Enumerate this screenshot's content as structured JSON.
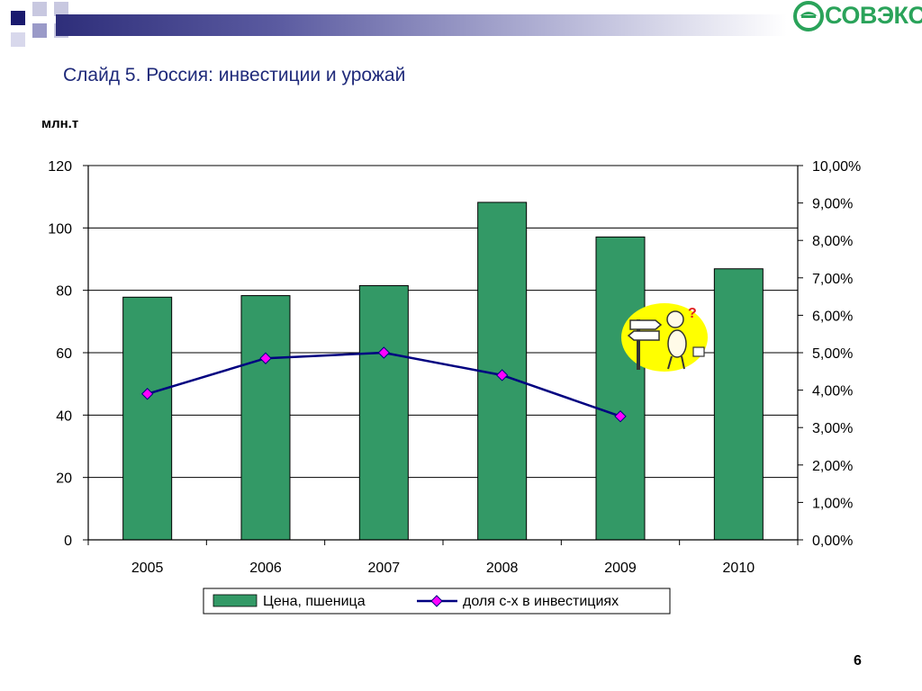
{
  "slide": {
    "title": "Слайд 5. Россия: инвестиции и урожай",
    "number": "6"
  },
  "logo": {
    "text": "СОВЭКОН",
    "color": "#2aa35a"
  },
  "chart_data": {
    "type": "bar",
    "categories": [
      "2005",
      "2006",
      "2007",
      "2008",
      "2009",
      "2010"
    ],
    "series": [
      {
        "name": "Цена, пшеница",
        "type": "bar",
        "axis": "left",
        "color": "#339966",
        "values": [
          77.8,
          78.3,
          81.5,
          108.2,
          97.1,
          86.9
        ]
      },
      {
        "name": "доля с-х в инвестициях",
        "type": "line",
        "axis": "right",
        "color": "#000080",
        "marker_color": "#ff00ff",
        "values": [
          0.039,
          0.0485,
          0.05,
          0.044,
          0.033,
          null
        ]
      }
    ],
    "left_axis": {
      "label": "млн.т",
      "ylim": [
        0,
        120
      ],
      "ticks": [
        "0",
        "20",
        "40",
        "60",
        "80",
        "100",
        "120"
      ]
    },
    "right_axis": {
      "ylim": [
        0,
        0.1
      ],
      "ticks": [
        "0,00%",
        "1,00%",
        "2,00%",
        "3,00%",
        "4,00%",
        "5,00%",
        "6,00%",
        "7,00%",
        "8,00%",
        "9,00%",
        "10,00%"
      ]
    },
    "grid": true,
    "legend_position": "bottom"
  }
}
